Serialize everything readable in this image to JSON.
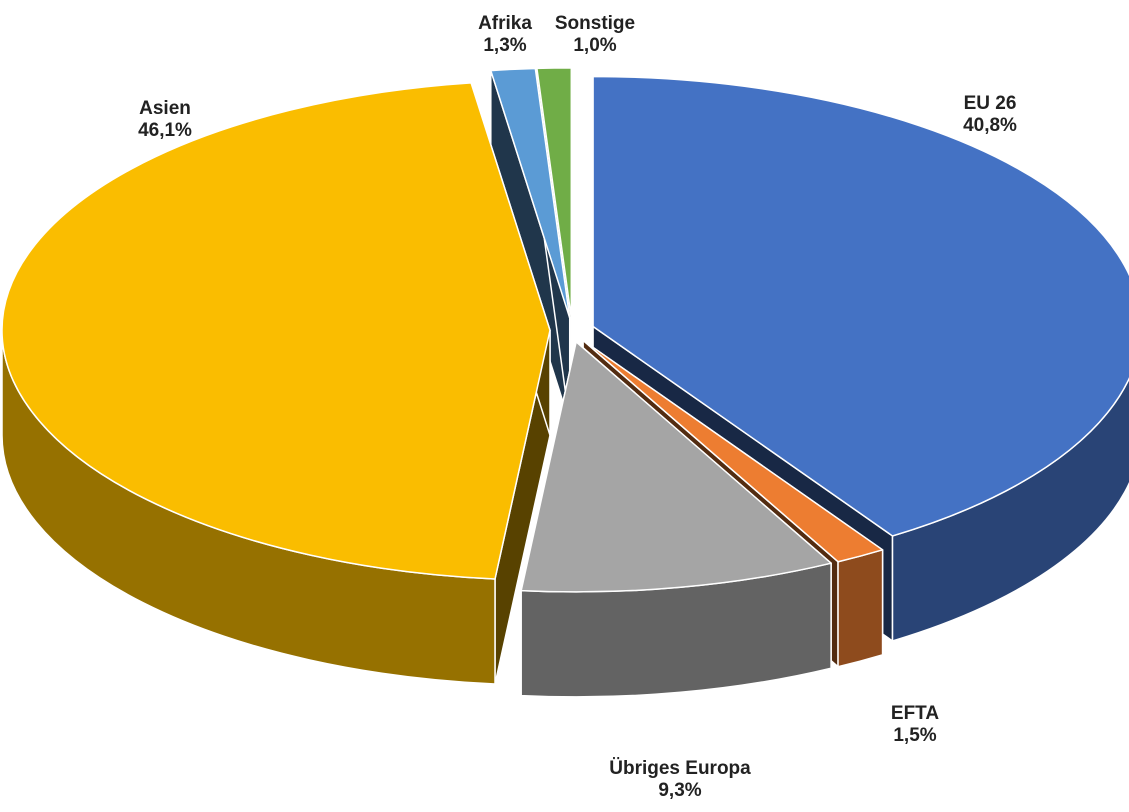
{
  "chart_data": {
    "type": "pie",
    "categories": [
      "EU 26",
      "EFTA",
      "Übriges Europa",
      "Asien",
      "Afrika",
      "Sonstige"
    ],
    "values": [
      40.8,
      1.5,
      9.3,
      46.1,
      1.3,
      1.0
    ],
    "value_labels": [
      "40,8%",
      "1,5%",
      "9,3%",
      "46,1%",
      "1,3%",
      "1,0%"
    ],
    "colors": [
      "#4472c4",
      "#ed7d31",
      "#a5a5a5",
      "#fabd00",
      "#5b9bd5",
      "#70ad47"
    ]
  }
}
